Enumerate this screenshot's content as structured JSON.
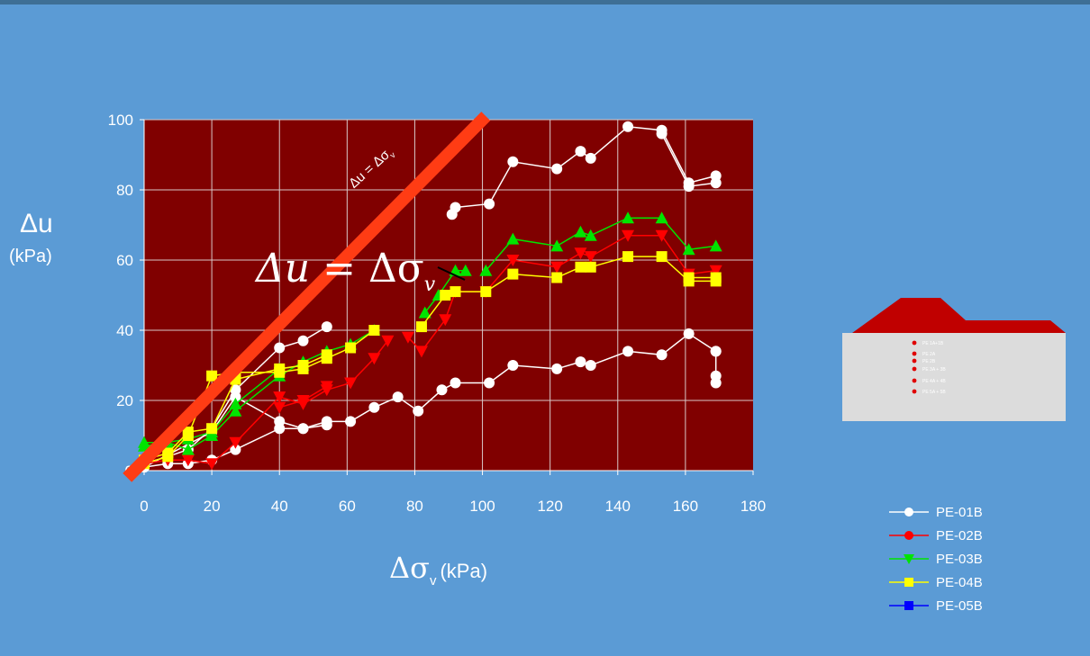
{
  "y_label": {
    "symbol": "Δu",
    "unit": "(kPa)"
  },
  "x_label": {
    "symbol": "Δσ",
    "sub": "v",
    "unit": "(kPa)"
  },
  "annotation": {
    "lhs": "Δu",
    "eq": " = ",
    "rhs": "Δσ",
    "sub": "v"
  },
  "annotation_small": {
    "lhs": "Δu",
    "eq": " = ",
    "rhs": "Δσ",
    "sub": "v"
  },
  "colors": {
    "background": "#5b9bd5",
    "plot": "#800000",
    "reference_line": "#ff3c14",
    "PE-01B": "#ffffff",
    "PE-02B": "#ff0000",
    "PE-03B": "#00e400",
    "PE-04B": "#ffff00",
    "PE-05B": "#0000ff"
  },
  "dam": {
    "labels": [
      "PE 1A+1B",
      "PE 2A",
      "PE 2B",
      "PE 3A + 3B",
      "PE 4A + 4B",
      "PE 5A + 5B"
    ]
  },
  "chart_data": {
    "type": "scatter",
    "title": "",
    "xlabel": "Δσv (kPa)",
    "ylabel": "Δu (kPa)",
    "xlim": [
      0,
      180
    ],
    "ylim": [
      0,
      100
    ],
    "xticks": [
      0,
      20,
      40,
      60,
      80,
      100,
      120,
      140,
      160,
      180
    ],
    "yticks": [
      0,
      20,
      40,
      60,
      80,
      100
    ],
    "grid": true,
    "legend_position": "bottom-right",
    "reference_line": {
      "label": "Δu = Δσv",
      "x": [
        -5,
        101
      ],
      "y": [
        -2,
        101
      ]
    },
    "series": [
      {
        "name": "PE-01B",
        "marker": "circle",
        "segments": [
          [
            [
              0,
              1
            ],
            [
              7,
              2
            ],
            [
              13,
              2
            ],
            [
              20,
              3
            ],
            [
              27,
              6
            ],
            [
              40,
              12
            ],
            [
              47,
              12
            ],
            [
              54,
              14
            ],
            [
              61,
              14
            ],
            [
              68,
              18
            ],
            [
              75,
              21
            ],
            [
              81,
              17
            ],
            [
              88,
              23
            ],
            [
              92,
              25
            ],
            [
              102,
              25
            ],
            [
              109,
              30
            ],
            [
              122,
              29
            ],
            [
              129,
              31
            ],
            [
              132,
              30
            ],
            [
              143,
              34
            ],
            [
              153,
              33
            ],
            [
              161,
              39
            ],
            [
              169,
              34
            ]
          ],
          [
            [
              0,
              2
            ],
            [
              7,
              4
            ],
            [
              13,
              6
            ],
            [
              20,
              12
            ],
            [
              27,
              23
            ],
            [
              40,
              35
            ],
            [
              47,
              37
            ],
            [
              54,
              41
            ]
          ],
          [
            [
              0,
              1
            ],
            [
              20,
              11
            ],
            [
              27,
              21
            ],
            [
              40,
              14
            ],
            [
              47,
              12
            ],
            [
              54,
              13
            ]
          ],
          [
            [
              91,
              73
            ],
            [
              92,
              75
            ],
            [
              102,
              76
            ],
            [
              109,
              88
            ],
            [
              122,
              86
            ],
            [
              129,
              91
            ],
            [
              132,
              89
            ],
            [
              143,
              98
            ],
            [
              153,
              97
            ],
            [
              161,
              82
            ],
            [
              169,
              84
            ]
          ],
          [
            [
              153,
              96
            ],
            [
              161,
              81
            ],
            [
              169,
              82
            ]
          ],
          [
            [
              169,
              34
            ],
            [
              169,
              27
            ],
            [
              169,
              25
            ]
          ]
        ]
      },
      {
        "name": "PE-02B",
        "marker": "triangle-down",
        "segments": [
          [
            [
              0,
              2
            ],
            [
              7,
              3
            ],
            [
              13,
              3
            ],
            [
              20,
              2
            ],
            [
              27,
              8
            ],
            [
              40,
              21
            ],
            [
              47,
              19
            ],
            [
              54,
              23
            ],
            [
              61,
              25
            ],
            [
              68,
              32
            ],
            [
              72,
              37
            ]
          ],
          [
            [
              40,
              18
            ],
            [
              47,
              20
            ],
            [
              54,
              24
            ]
          ],
          [
            [
              78,
              38
            ],
            [
              82,
              34
            ],
            [
              89,
              43
            ],
            [
              92,
              51
            ],
            [
              101,
              51
            ],
            [
              109,
              60
            ],
            [
              122,
              58
            ],
            [
              129,
              62
            ],
            [
              132,
              61
            ],
            [
              143,
              67
            ],
            [
              153,
              67
            ],
            [
              161,
              56
            ],
            [
              169,
              57
            ]
          ]
        ]
      },
      {
        "name": "PE-03B",
        "marker": "triangle-up",
        "segments": [
          [
            [
              0,
              8
            ],
            [
              7,
              8
            ],
            [
              13,
              6
            ],
            [
              20,
              10
            ],
            [
              27,
              17
            ],
            [
              40,
              27
            ],
            [
              47,
              31
            ],
            [
              54,
              34
            ],
            [
              61,
              36
            ],
            [
              68,
              40
            ]
          ],
          [
            [
              0,
              7
            ],
            [
              13,
              9
            ],
            [
              20,
              11
            ],
            [
              27,
              19
            ],
            [
              40,
              29
            ],
            [
              47,
              30
            ]
          ],
          [
            [
              83,
              45
            ],
            [
              87,
              50
            ],
            [
              92,
              57
            ],
            [
              95,
              57
            ]
          ],
          [
            [
              101,
              57
            ],
            [
              109,
              66
            ],
            [
              122,
              64
            ],
            [
              129,
              68
            ],
            [
              132,
              67
            ],
            [
              143,
              72
            ],
            [
              153,
              72
            ],
            [
              161,
              63
            ],
            [
              169,
              64
            ]
          ]
        ]
      },
      {
        "name": "PE-04B",
        "marker": "square",
        "segments": [
          [
            [
              0,
              2
            ],
            [
              7,
              4
            ],
            [
              13,
              10
            ],
            [
              20,
              27
            ],
            [
              27,
              28
            ],
            [
              40,
              28
            ],
            [
              47,
              29
            ],
            [
              54,
              32
            ],
            [
              61,
              35
            ],
            [
              68,
              40
            ]
          ],
          [
            [
              0,
              3
            ],
            [
              7,
              5
            ],
            [
              13,
              11
            ],
            [
              20,
              12
            ],
            [
              27,
              26
            ],
            [
              40,
              29
            ],
            [
              47,
              30
            ],
            [
              54,
              33
            ]
          ],
          [
            [
              82,
              41
            ],
            [
              89,
              50
            ],
            [
              92,
              51
            ],
            [
              101,
              51
            ],
            [
              109,
              56
            ],
            [
              122,
              55
            ],
            [
              129,
              58
            ],
            [
              132,
              58
            ],
            [
              143,
              61
            ],
            [
              153,
              61
            ],
            [
              161,
              54
            ],
            [
              169,
              54
            ]
          ],
          [
            [
              161,
              55
            ],
            [
              169,
              55
            ]
          ]
        ]
      },
      {
        "name": "PE-05B",
        "marker": "square",
        "segments": []
      }
    ]
  }
}
